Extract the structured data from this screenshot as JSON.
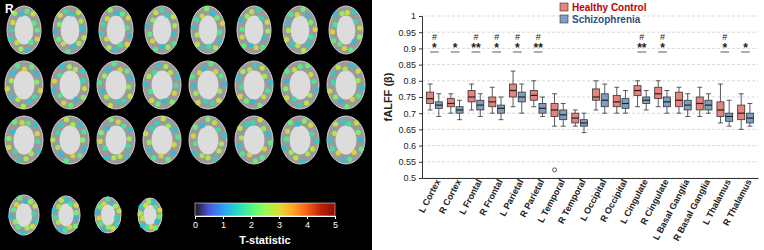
{
  "chart_data": [
    {
      "type": "brain_map",
      "label": "R",
      "colorbar": {
        "title": "T-statistic",
        "range": [
          0,
          5
        ],
        "ticks": [
          0,
          1,
          2,
          3,
          4,
          5
        ]
      }
    },
    {
      "type": "box",
      "ylabel": "fALFF (β)",
      "ylim": [
        0.5,
        1
      ],
      "yticks": [
        0.5,
        0.55,
        0.6,
        0.65,
        0.7,
        0.75,
        0.8,
        0.85,
        0.9,
        0.95,
        1
      ],
      "grid": true,
      "legend": "top",
      "categories": [
        "L Cortex",
        "R Cortex",
        "L Frontal",
        "R Frontal",
        "L Parietal",
        "R Parietal",
        "L Temporal",
        "R Temporal",
        "L Occipital",
        "R Occipital",
        "L Cingulate",
        "R Cingulate",
        "L Basal Ganglia",
        "R Basal Ganglia",
        "L Thalamus",
        "R Thalamus"
      ],
      "significance": [
        "*",
        "*",
        "**",
        "*",
        "*",
        "**",
        null,
        null,
        null,
        null,
        "**",
        "*",
        null,
        null,
        "*",
        "*"
      ],
      "fdr_marks": [
        "#",
        null,
        "#",
        "#",
        "#",
        "#",
        null,
        null,
        null,
        null,
        "#",
        "#",
        null,
        null,
        "#",
        null
      ],
      "series": [
        {
          "name": "Healthy Control",
          "color": "#e8827d",
          "boxes": [
            {
              "min": 0.71,
              "q1": 0.73,
              "median": 0.745,
              "q3": 0.765,
              "max": 0.79,
              "outliers": []
            },
            {
              "min": 0.7,
              "q1": 0.72,
              "median": 0.73,
              "q3": 0.745,
              "max": 0.76,
              "outliers": []
            },
            {
              "min": 0.71,
              "q1": 0.735,
              "median": 0.75,
              "q3": 0.77,
              "max": 0.79,
              "outliers": []
            },
            {
              "min": 0.7,
              "q1": 0.72,
              "median": 0.735,
              "q3": 0.75,
              "max": 0.78,
              "outliers": []
            },
            {
              "min": 0.72,
              "q1": 0.75,
              "median": 0.77,
              "q3": 0.79,
              "max": 0.83,
              "outliers": []
            },
            {
              "min": 0.72,
              "q1": 0.74,
              "median": 0.755,
              "q3": 0.77,
              "max": 0.8,
              "outliers": []
            },
            {
              "min": 0.66,
              "q1": 0.69,
              "median": 0.71,
              "q3": 0.73,
              "max": 0.76,
              "outliers": [
                0.525
              ]
            },
            {
              "min": 0.66,
              "q1": 0.67,
              "median": 0.685,
              "q3": 0.7,
              "max": 0.71,
              "outliers": []
            },
            {
              "min": 0.71,
              "q1": 0.74,
              "median": 0.75,
              "q3": 0.775,
              "max": 0.8,
              "outliers": []
            },
            {
              "min": 0.7,
              "q1": 0.72,
              "median": 0.735,
              "q3": 0.755,
              "max": 0.78,
              "outliers": []
            },
            {
              "min": 0.72,
              "q1": 0.755,
              "median": 0.77,
              "q3": 0.785,
              "max": 0.8,
              "outliers": []
            },
            {
              "min": 0.72,
              "q1": 0.745,
              "median": 0.76,
              "q3": 0.78,
              "max": 0.8,
              "outliers": []
            },
            {
              "min": 0.7,
              "q1": 0.72,
              "median": 0.74,
              "q3": 0.765,
              "max": 0.78,
              "outliers": []
            },
            {
              "min": 0.69,
              "q1": 0.71,
              "median": 0.73,
              "q3": 0.75,
              "max": 0.78,
              "outliers": []
            },
            {
              "min": 0.67,
              "q1": 0.69,
              "median": 0.71,
              "q3": 0.735,
              "max": 0.79,
              "outliers": []
            },
            {
              "min": 0.65,
              "q1": 0.68,
              "median": 0.7,
              "q3": 0.725,
              "max": 0.76,
              "outliers": []
            }
          ]
        },
        {
          "name": "Schizophrenia",
          "color": "#7f9fc2",
          "boxes": [
            {
              "min": 0.69,
              "q1": 0.715,
              "median": 0.725,
              "q3": 0.735,
              "max": 0.76,
              "outliers": []
            },
            {
              "min": 0.68,
              "q1": 0.7,
              "median": 0.71,
              "q3": 0.72,
              "max": 0.74,
              "outliers": []
            },
            {
              "min": 0.69,
              "q1": 0.71,
              "median": 0.725,
              "q3": 0.74,
              "max": 0.76,
              "outliers": []
            },
            {
              "min": 0.68,
              "q1": 0.7,
              "median": 0.715,
              "q3": 0.725,
              "max": 0.75,
              "outliers": []
            },
            {
              "min": 0.7,
              "q1": 0.735,
              "median": 0.75,
              "q3": 0.765,
              "max": 0.79,
              "outliers": []
            },
            {
              "min": 0.69,
              "q1": 0.7,
              "median": 0.715,
              "q3": 0.73,
              "max": 0.75,
              "outliers": []
            },
            {
              "min": 0.66,
              "q1": 0.68,
              "median": 0.695,
              "q3": 0.71,
              "max": 0.73,
              "outliers": []
            },
            {
              "min": 0.64,
              "q1": 0.66,
              "median": 0.67,
              "q3": 0.68,
              "max": 0.7,
              "outliers": []
            },
            {
              "min": 0.7,
              "q1": 0.72,
              "median": 0.74,
              "q3": 0.76,
              "max": 0.79,
              "outliers": []
            },
            {
              "min": 0.7,
              "q1": 0.715,
              "median": 0.73,
              "q3": 0.745,
              "max": 0.77,
              "outliers": []
            },
            {
              "min": 0.71,
              "q1": 0.73,
              "median": 0.74,
              "q3": 0.75,
              "max": 0.77,
              "outliers": []
            },
            {
              "min": 0.7,
              "q1": 0.72,
              "median": 0.735,
              "q3": 0.75,
              "max": 0.77,
              "outliers": []
            },
            {
              "min": 0.69,
              "q1": 0.71,
              "median": 0.725,
              "q3": 0.74,
              "max": 0.76,
              "outliers": []
            },
            {
              "min": 0.7,
              "q1": 0.71,
              "median": 0.725,
              "q3": 0.74,
              "max": 0.76,
              "outliers": []
            },
            {
              "min": 0.66,
              "q1": 0.675,
              "median": 0.69,
              "q3": 0.7,
              "max": 0.74,
              "outliers": []
            },
            {
              "min": 0.66,
              "q1": 0.67,
              "median": 0.685,
              "q3": 0.7,
              "max": 0.73,
              "outliers": []
            }
          ]
        }
      ]
    }
  ]
}
